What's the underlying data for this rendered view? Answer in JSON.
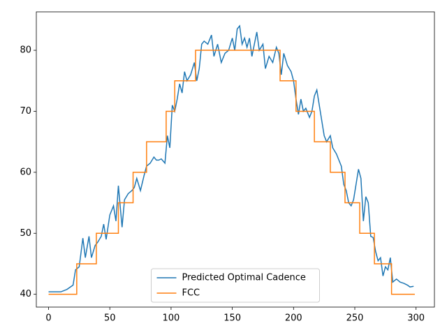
{
  "chart_data": {
    "type": "line",
    "xlim": [
      -10,
      315
    ],
    "ylim": [
      37.9,
      86.3
    ],
    "xticks": [
      0,
      50,
      100,
      150,
      200,
      250,
      300
    ],
    "yticks": [
      40,
      50,
      60,
      70,
      80
    ],
    "legend": "lower center",
    "series": [
      {
        "name": "Predicted Optimal Cadence",
        "color": "#1f77b4",
        "x": [
          0,
          5,
          10,
          15,
          20,
          22,
          25,
          28,
          30,
          33,
          35,
          38,
          40,
          43,
          45,
          47,
          50,
          53,
          55,
          57,
          60,
          62,
          65,
          68,
          70,
          72,
          75,
          78,
          80,
          83,
          86,
          88,
          90,
          92,
          95,
          97,
          99,
          101,
          103,
          105,
          107,
          109,
          111,
          113,
          116,
          119,
          121,
          123,
          125,
          127,
          130,
          133,
          135,
          138,
          141,
          144,
          147,
          150,
          152,
          154,
          156,
          158,
          160,
          162,
          164,
          166,
          168,
          170,
          172,
          175,
          177,
          180,
          183,
          186,
          188,
          190,
          192,
          195,
          198,
          200,
          202,
          204,
          206,
          208,
          210,
          213,
          215,
          217,
          219,
          221,
          223,
          225,
          227,
          230,
          232,
          235,
          237,
          239,
          241,
          243,
          245,
          247,
          249,
          251,
          253,
          255,
          257,
          259,
          261,
          263,
          265,
          267,
          269,
          271,
          273,
          275,
          277,
          279,
          281,
          284,
          287,
          290,
          293,
          295,
          298
        ],
        "values": [
          40.4,
          40.4,
          40.4,
          40.8,
          41.5,
          44,
          44.5,
          49.2,
          46,
          49.5,
          46,
          48,
          48.5,
          49.5,
          51.5,
          49,
          53,
          54.5,
          52,
          57.8,
          51,
          55.5,
          56.5,
          57,
          57.5,
          59,
          57,
          59.5,
          61,
          61.5,
          62.5,
          62,
          62,
          62.2,
          61.5,
          66,
          64,
          71,
          70,
          72,
          74.5,
          73,
          76.5,
          75,
          76,
          78,
          75,
          77,
          81,
          81.5,
          81,
          82.5,
          79,
          81,
          78,
          79.5,
          80,
          82,
          80,
          83.5,
          84,
          81,
          82,
          80.5,
          82,
          79,
          81,
          83,
          80,
          81,
          77,
          79,
          78,
          80.5,
          79.5,
          76,
          79.5,
          77.5,
          76.5,
          75,
          72,
          69.5,
          72,
          70,
          70.5,
          69,
          70,
          72.5,
          73.5,
          71,
          68.5,
          66,
          65,
          66,
          64,
          63,
          62,
          61,
          58,
          57,
          55,
          54.5,
          55.5,
          58,
          60.5,
          59,
          52,
          56,
          55,
          49.5,
          49.3,
          47,
          45.5,
          46,
          43,
          44.5,
          44,
          46,
          42,
          42.5,
          42,
          41.8,
          41.5,
          41.2,
          41.3
        ]
      },
      {
        "name": "FCC",
        "color": "#ff7f0e",
        "x": [
          0,
          23,
          23,
          39,
          39,
          57,
          57,
          69,
          69,
          80,
          80,
          96,
          96,
          103,
          103,
          120,
          120,
          189,
          189,
          202,
          202,
          217,
          217,
          230,
          230,
          242,
          242,
          254,
          254,
          266,
          266,
          280,
          280,
          299
        ],
        "values": [
          40,
          40,
          45,
          45,
          50,
          50,
          55,
          55,
          60,
          60,
          65,
          65,
          70,
          70,
          75,
          75,
          80,
          80,
          75,
          75,
          70,
          70,
          65,
          65,
          60,
          60,
          55,
          55,
          50,
          50,
          45,
          45,
          40,
          40
        ]
      }
    ]
  }
}
